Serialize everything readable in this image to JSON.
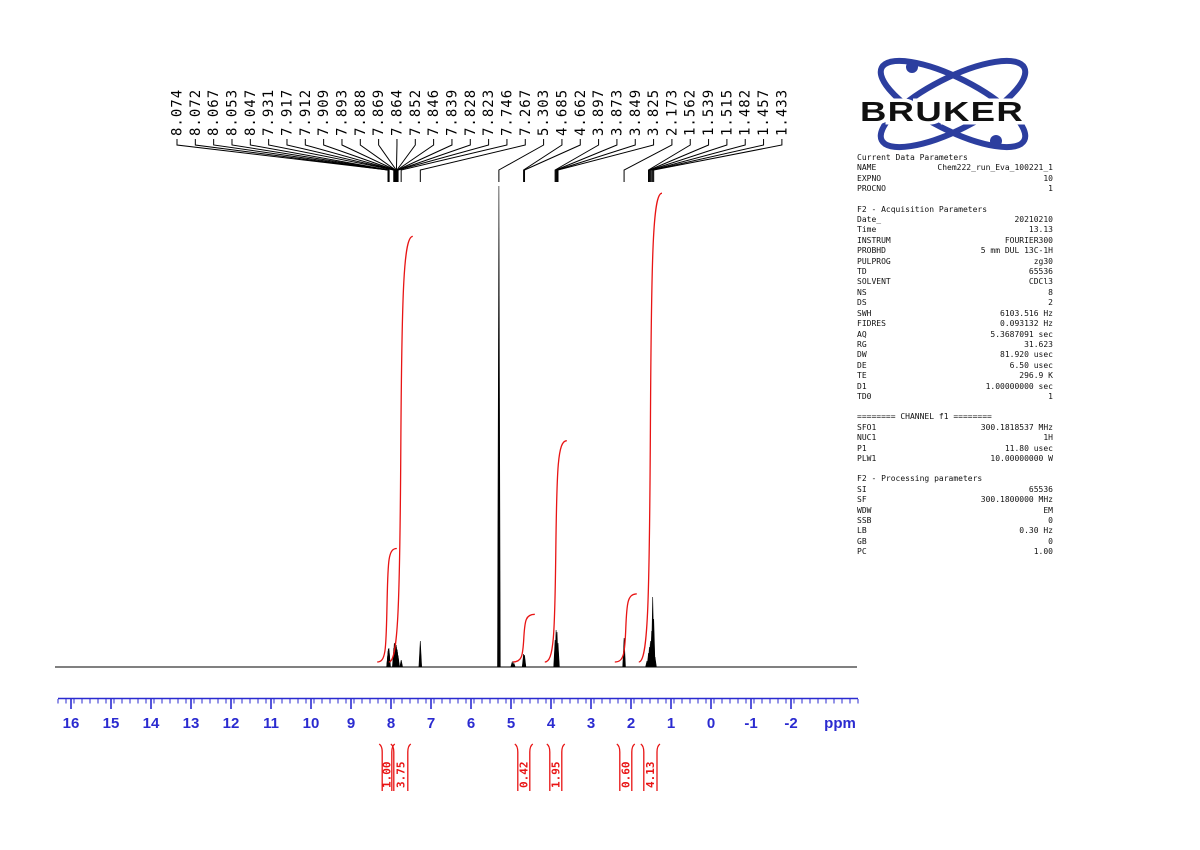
{
  "logo": {
    "text": "BRUKER"
  },
  "colors": {
    "axis_blue": "#2b2bd0",
    "integral_red": "#e81414",
    "peak_black": "#000000",
    "logo_blue": "#2c3e9f",
    "logo_text": "#101010"
  },
  "chart_data": {
    "type": "line",
    "title": "1H NMR spectrum",
    "xlabel": "ppm",
    "x_axis": {
      "min": -2,
      "max": 16,
      "direction": "reversed",
      "major_ticks": [
        16,
        15,
        14,
        13,
        12,
        11,
        10,
        9,
        8,
        7,
        6,
        5,
        4,
        3,
        2,
        1,
        0,
        -1,
        -2
      ]
    },
    "peak_labels": [
      "8.074",
      "8.072",
      "8.067",
      "8.053",
      "8.047",
      "7.931",
      "7.917",
      "7.912",
      "7.909",
      "7.893",
      "7.888",
      "7.869",
      "7.864",
      "7.852",
      "7.846",
      "7.839",
      "7.828",
      "7.823",
      "7.746",
      "7.267",
      "5.303",
      "4.685",
      "4.662",
      "3.897",
      "3.873",
      "3.849",
      "3.825",
      "2.173",
      "1.562",
      "1.539",
      "1.515",
      "1.482",
      "1.457",
      "1.433"
    ],
    "peaks": [
      [
        8.074,
        14
      ],
      [
        8.072,
        16
      ],
      [
        8.067,
        18
      ],
      [
        8.053,
        19
      ],
      [
        8.047,
        16
      ],
      [
        7.931,
        19
      ],
      [
        7.917,
        24
      ],
      [
        7.912,
        22
      ],
      [
        7.909,
        23
      ],
      [
        7.893,
        25
      ],
      [
        7.888,
        24
      ],
      [
        7.869,
        22
      ],
      [
        7.864,
        20
      ],
      [
        7.852,
        18
      ],
      [
        7.846,
        17
      ],
      [
        7.839,
        15
      ],
      [
        7.828,
        12
      ],
      [
        7.823,
        11
      ],
      [
        7.746,
        7
      ],
      [
        7.267,
        26
      ],
      [
        5.303,
        481
      ],
      [
        4.97,
        5
      ],
      [
        4.93,
        4
      ],
      [
        4.685,
        13
      ],
      [
        4.662,
        12
      ],
      [
        3.897,
        27
      ],
      [
        3.873,
        37
      ],
      [
        3.849,
        35
      ],
      [
        3.825,
        24
      ],
      [
        2.173,
        29
      ],
      [
        1.562,
        14
      ],
      [
        1.539,
        20
      ],
      [
        1.515,
        26
      ],
      [
        1.482,
        36
      ],
      [
        1.457,
        70
      ],
      [
        1.433,
        48
      ],
      [
        1.6,
        6
      ],
      [
        1.4,
        10
      ]
    ],
    "integrals": [
      {
        "label": "1.00",
        "value": 1.0,
        "from": 8.22,
        "to": 7.98
      },
      {
        "label": "3.75",
        "value": 3.75,
        "from": 7.93,
        "to": 7.58
      },
      {
        "label": "0.42",
        "value": 0.42,
        "from": 4.83,
        "to": 4.53
      },
      {
        "label": "1.95",
        "value": 1.95,
        "from": 4.03,
        "to": 3.73
      },
      {
        "label": "0.60",
        "value": 0.6,
        "from": 2.28,
        "to": 1.98
      },
      {
        "label": "4.13",
        "value": 4.13,
        "from": 1.68,
        "to": 1.35
      }
    ]
  },
  "parameters": {
    "sections": [
      {
        "header": "Current Data Parameters",
        "rows": [
          [
            "NAME",
            "Chem222_run_Eva_100221_1"
          ],
          [
            "EXPNO",
            "10"
          ],
          [
            "PROCNO",
            "1"
          ]
        ]
      },
      {
        "header": "F2 - Acquisition Parameters",
        "rows": [
          [
            "Date_",
            "20210210"
          ],
          [
            "Time",
            "13.13"
          ],
          [
            "INSTRUM",
            "FOURIER300"
          ],
          [
            "PROBHD",
            "5 mm DUL 13C-1H"
          ],
          [
            "PULPROG",
            "zg30"
          ],
          [
            "TD",
            "65536"
          ],
          [
            "SOLVENT",
            "CDCl3"
          ],
          [
            "NS",
            "8"
          ],
          [
            "DS",
            "2"
          ],
          [
            "SWH",
            "6103.516 Hz"
          ],
          [
            "FIDRES",
            "0.093132 Hz"
          ],
          [
            "AQ",
            "5.3687091 sec"
          ],
          [
            "RG",
            "31.623"
          ],
          [
            "DW",
            "81.920 usec"
          ],
          [
            "DE",
            "6.50 usec"
          ],
          [
            "TE",
            "296.9 K"
          ],
          [
            "D1",
            "1.00000000 sec"
          ],
          [
            "TD0",
            "1"
          ]
        ]
      },
      {
        "header": "======== CHANNEL f1 ========",
        "rows": [
          [
            "SFO1",
            "300.1818537 MHz"
          ],
          [
            "NUC1",
            "1H"
          ],
          [
            "P1",
            "11.80 usec"
          ],
          [
            "PLW1",
            "10.00000000 W"
          ]
        ]
      },
      {
        "header": "F2 - Processing parameters",
        "rows": [
          [
            "SI",
            "65536"
          ],
          [
            "SF",
            "300.1800000 MHz"
          ],
          [
            "WDW",
            "EM"
          ],
          [
            "SSB",
            "0"
          ],
          [
            "LB",
            "0.30 Hz"
          ],
          [
            "GB",
            "0"
          ],
          [
            "PC",
            "1.00"
          ]
        ]
      }
    ]
  }
}
